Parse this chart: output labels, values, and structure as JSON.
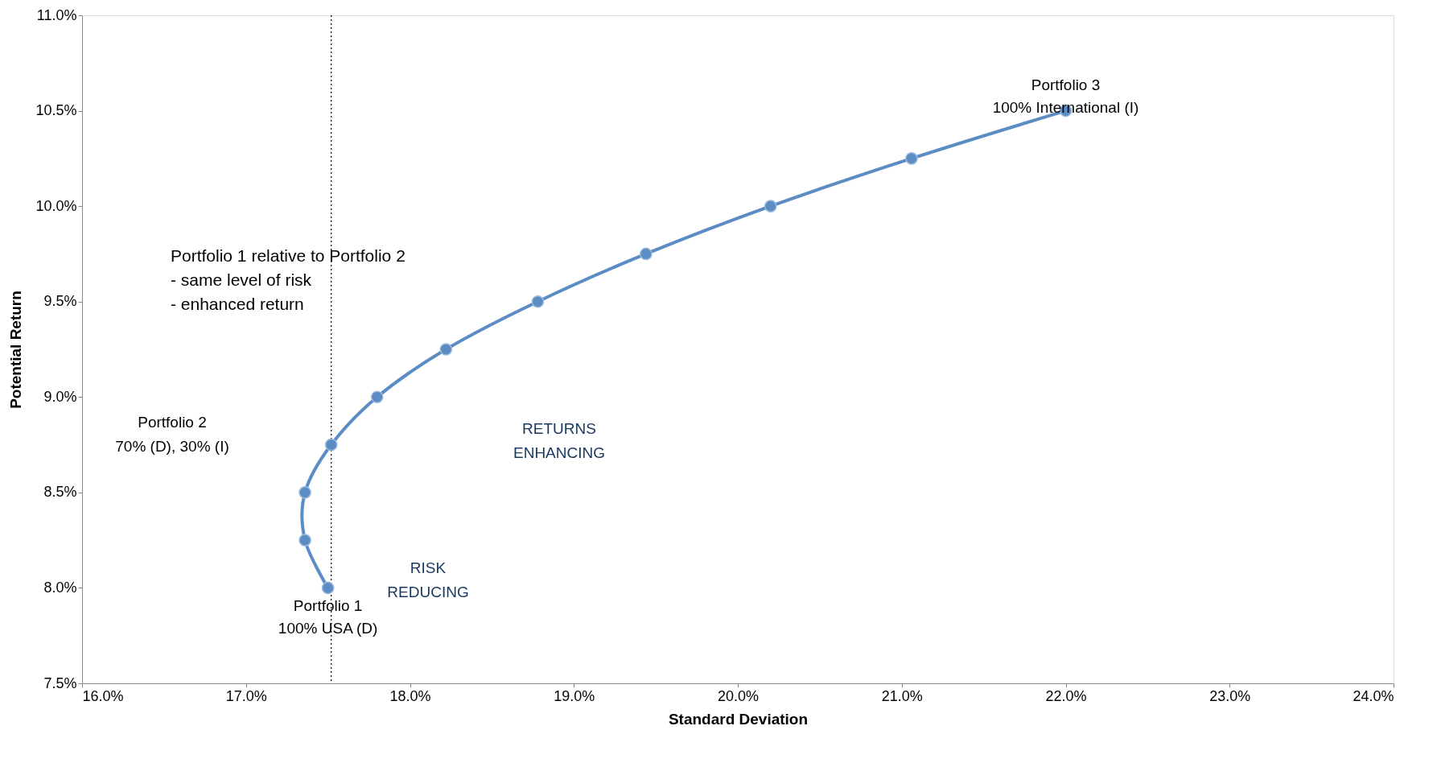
{
  "chart_data": {
    "type": "line",
    "xlabel": "Standard Deviation",
    "ylabel": "Potential Return",
    "series": [
      {
        "color": "#5b8cc4",
        "x": [
          17.5,
          17.36,
          17.36,
          17.52,
          17.8,
          18.22,
          18.78,
          19.44,
          20.2,
          21.06,
          22.0
        ],
        "values": [
          8.0,
          8.25,
          8.5,
          8.75,
          9.0,
          9.25,
          9.5,
          9.75,
          10.0,
          10.25,
          10.5
        ]
      }
    ],
    "marker": "circle",
    "xlim": [
      16,
      24
    ],
    "xticks": [
      {
        "value": 16,
        "label": "16.0%"
      },
      {
        "value": 17,
        "label": "17.0%"
      },
      {
        "value": 18,
        "label": "18.0%"
      },
      {
        "value": 19,
        "label": "19.0%"
      },
      {
        "value": 20,
        "label": "20.0%"
      },
      {
        "value": 21,
        "label": "21.0%"
      },
      {
        "value": 22,
        "label": "22.0%"
      },
      {
        "value": 23,
        "label": "23.0%"
      },
      {
        "value": 24,
        "label": "24.0%"
      }
    ],
    "ylim": [
      7.5,
      11
    ],
    "yticks": [
      {
        "value": 7.5,
        "label": "7.5%"
      },
      {
        "value": 8,
        "label": "8.0%"
      },
      {
        "value": 8.5,
        "label": "8.5%"
      },
      {
        "value": 9,
        "label": "9.0%"
      },
      {
        "value": 9.5,
        "label": "9.5%"
      },
      {
        "value": 10,
        "label": "10.0%"
      },
      {
        "value": 10.5,
        "label": "10.5%"
      },
      {
        "value": 11,
        "label": "11.0%"
      }
    ],
    "ref_lines": [
      {
        "axis": "x",
        "value": 17.52,
        "color": "#000000",
        "line_style": "dotted"
      }
    ],
    "annotations": [
      {
        "text": "Portfolio 1\n100% USA (D)",
        "x": 17.5,
        "y": 8.0
      },
      "Portfolio 2\n70% (D), 30% (I)",
      {
        "text": "Portfolio 3\n100% International (I)",
        "x": 22.0,
        "y": 10.5
      },
      "Portfolio 1 relative to Portfolio 2\n- same level of risk\n- enhanced return",
      "RETURNS\nENHANCING",
      "RISK\nREDUCING"
    ],
    "grid": false
  }
}
